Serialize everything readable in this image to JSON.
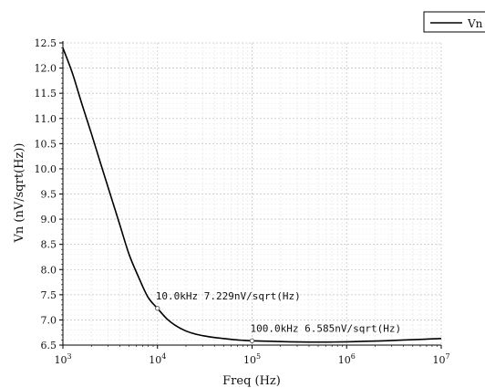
{
  "chart_data": {
    "type": "line",
    "xlabel": "Freq (Hz)",
    "ylabel": "Vn (nV/sqrt(Hz))",
    "x_scale": "log",
    "xlim": [
      1000,
      10000000
    ],
    "ylim": [
      6.5,
      12.5
    ],
    "x_ticks": [
      {
        "base": "10",
        "exp": "3",
        "value": 1000
      },
      {
        "base": "10",
        "exp": "4",
        "value": 10000
      },
      {
        "base": "10",
        "exp": "5",
        "value": 100000
      },
      {
        "base": "10",
        "exp": "6",
        "value": 1000000
      },
      {
        "base": "10",
        "exp": "7",
        "value": 10000000
      }
    ],
    "y_ticks": [
      "6.5",
      "7.0",
      "7.5",
      "8.0",
      "8.5",
      "9.0",
      "9.5",
      "10.0",
      "10.5",
      "11.0",
      "11.5",
      "12.0",
      "12.5"
    ],
    "grid": true,
    "legend_position": "top-right",
    "series": [
      {
        "name": "Vn",
        "color": "#000000",
        "x": [
          1000,
          1260,
          1580,
          2000,
          2510,
          3160,
          3980,
          5010,
          6310,
          7940,
          10000,
          12600,
          15800,
          20000,
          25100,
          31600,
          39800,
          50100,
          63100,
          79400,
          100000,
          158000,
          251000,
          398000,
          631000,
          1000000,
          1580000,
          2510000,
          3980000,
          6310000,
          10000000
        ],
        "y": [
          12.4,
          11.9,
          11.3,
          10.7,
          10.1,
          9.5,
          8.9,
          8.3,
          7.85,
          7.45,
          7.229,
          7.02,
          6.88,
          6.78,
          6.72,
          6.68,
          6.65,
          6.63,
          6.61,
          6.595,
          6.585,
          6.575,
          6.565,
          6.56,
          6.56,
          6.565,
          6.575,
          6.585,
          6.6,
          6.615,
          6.63
        ]
      }
    ],
    "annotations": [
      {
        "x": 10000,
        "y": 7.229,
        "text": "10.0kHz 7.229nV/sqrt(Hz)"
      },
      {
        "x": 100000,
        "y": 6.585,
        "text": "100.0kHz 6.585nV/sqrt(Hz)"
      }
    ]
  }
}
